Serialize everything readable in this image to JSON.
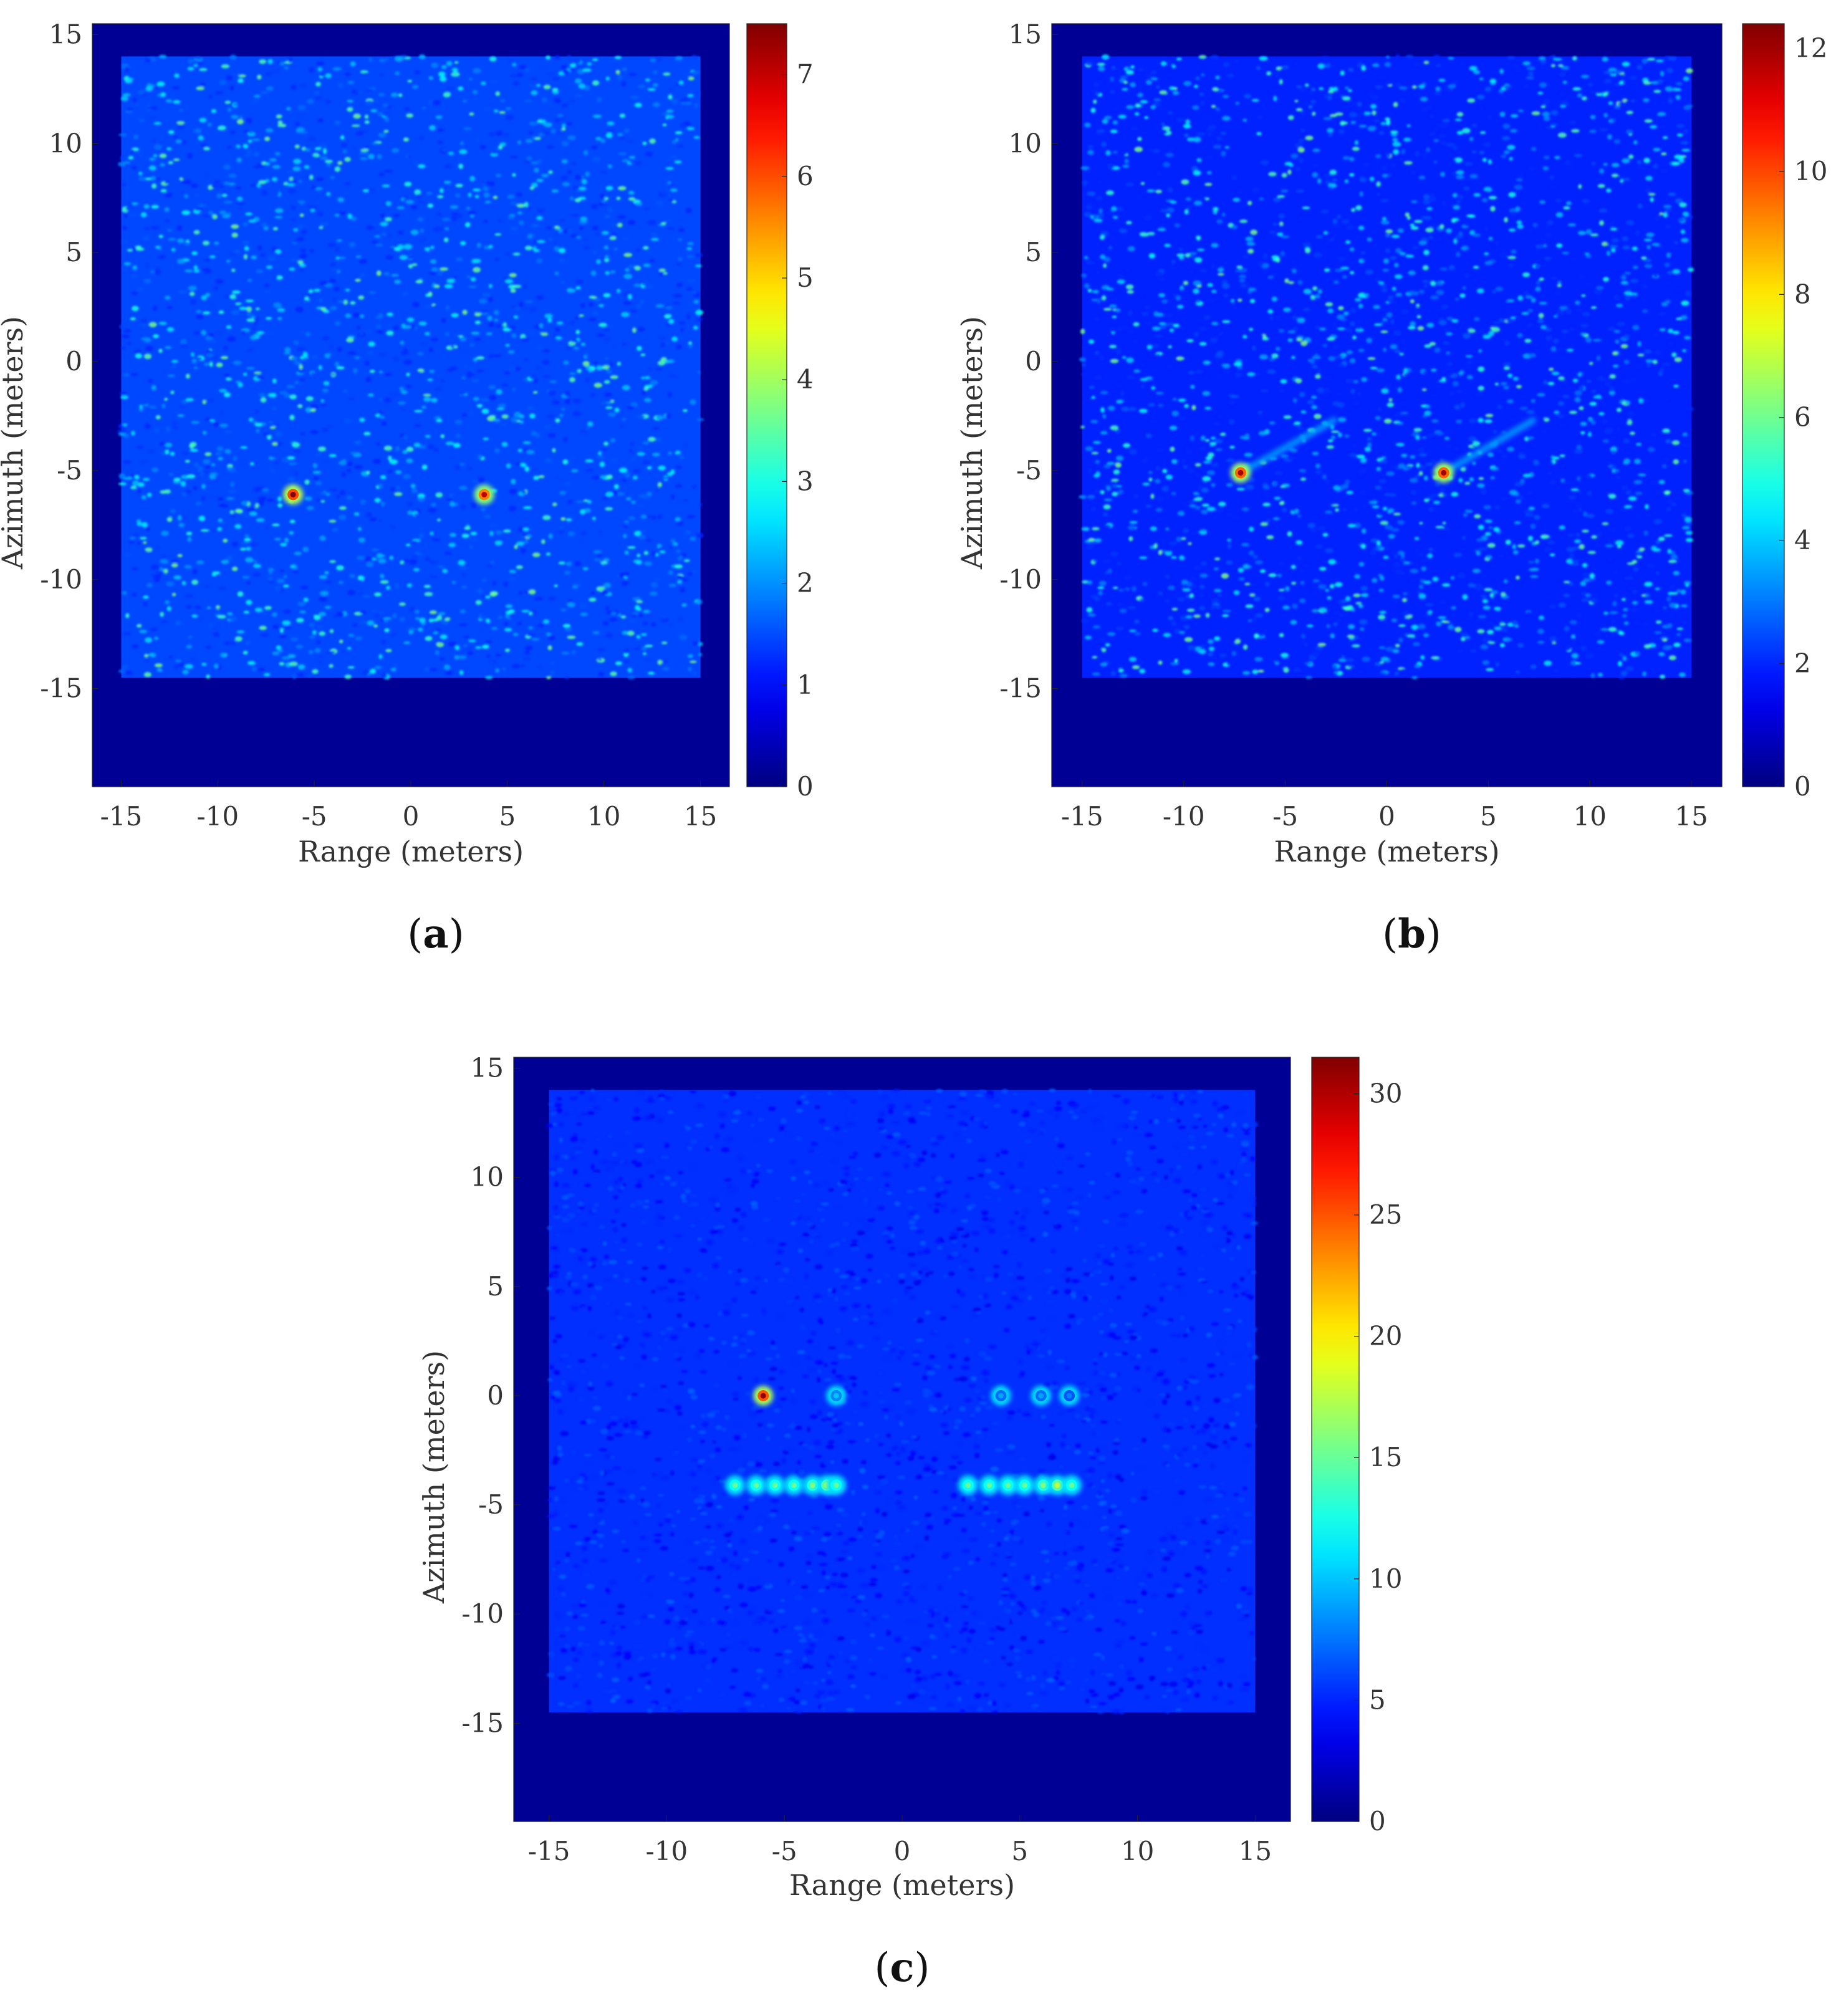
{
  "chart_data": [
    {
      "type": "heatmap",
      "panel_label": "a",
      "xlabel": "Range (meters)",
      "ylabel": "Azimuth (meters)",
      "xlim": [
        -16.5,
        16.5
      ],
      "ylim": [
        -19.5,
        15.5
      ],
      "xticks": [
        -15,
        -10,
        -5,
        0,
        5,
        10,
        15
      ],
      "yticks": [
        -15,
        -10,
        -5,
        0,
        5,
        10,
        15
      ],
      "colorbar": {
        "min": 0,
        "max": 7.5,
        "ticks": [
          0,
          1,
          2,
          3,
          4,
          5,
          6,
          7
        ]
      },
      "colormap": "jet",
      "background_level": 0.8,
      "clutter_region": {
        "x": [
          -15,
          15
        ],
        "y": [
          -14.5,
          14
        ]
      },
      "hotspots": [
        {
          "x": -6.1,
          "y": -6.1,
          "value": 7.5
        },
        {
          "x": 3.8,
          "y": -6.1,
          "value": 7.0
        }
      ],
      "streaks": []
    },
    {
      "type": "heatmap",
      "panel_label": "b",
      "xlabel": "Range (meters)",
      "ylabel": "Azimuth (meters)",
      "xlim": [
        -16.5,
        16.5
      ],
      "ylim": [
        -19.5,
        15.5
      ],
      "xticks": [
        -15,
        -10,
        -5,
        0,
        5,
        10,
        15
      ],
      "yticks": [
        -15,
        -10,
        -5,
        0,
        5,
        10,
        15
      ],
      "colorbar": {
        "min": 0,
        "max": 12.4,
        "ticks": [
          0,
          2,
          4,
          6,
          8,
          10,
          12
        ]
      },
      "colormap": "jet",
      "background_level": 0.8,
      "clutter_region": {
        "x": [
          -15,
          15
        ],
        "y": [
          -14.5,
          14
        ]
      },
      "hotspots": [
        {
          "x": -7.2,
          "y": -5.1,
          "value": 12.0
        },
        {
          "x": 2.8,
          "y": -5.1,
          "value": 12.0
        }
      ],
      "streaks": [
        {
          "x0": -7.2,
          "y0": -5.1,
          "x1": -2.6,
          "y1": -2.7,
          "value": 3.5
        },
        {
          "x0": 2.8,
          "y0": -5.1,
          "x1": 7.2,
          "y1": -2.7,
          "value": 3.5
        }
      ]
    },
    {
      "type": "heatmap",
      "panel_label": "c",
      "xlabel": "Range (meters)",
      "ylabel": "Azimuth (meters)",
      "xlim": [
        -16.5,
        16.5
      ],
      "ylim": [
        -19.5,
        15.5
      ],
      "xticks": [
        -15,
        -10,
        -5,
        0,
        5,
        10,
        15
      ],
      "yticks": [
        -15,
        -10,
        -5,
        0,
        5,
        10,
        15
      ],
      "colorbar": {
        "min": 0,
        "max": 31.5,
        "ticks": [
          0,
          5,
          10,
          15,
          20,
          25,
          30
        ]
      },
      "colormap": "jet",
      "background_level": 2.5,
      "clutter_region": {
        "x": [
          -15,
          15
        ],
        "y": [
          -14.5,
          14
        ]
      },
      "hotspots": [
        {
          "x": -5.9,
          "y": 0,
          "value": 31.0
        },
        {
          "x": -2.8,
          "y": 0,
          "value": 10.0
        },
        {
          "x": 4.2,
          "y": 0,
          "value": 9.0
        },
        {
          "x": 5.9,
          "y": 0,
          "value": 9.0
        },
        {
          "x": 7.1,
          "y": 0,
          "value": 8.0
        },
        {
          "x": -7.1,
          "y": -4.1,
          "value": 15.0
        },
        {
          "x": -6.2,
          "y": -4.1,
          "value": 15.0
        },
        {
          "x": -5.4,
          "y": -4.1,
          "value": 15.0
        },
        {
          "x": -4.6,
          "y": -4.1,
          "value": 15.0
        },
        {
          "x": -3.8,
          "y": -4.1,
          "value": 16.0
        },
        {
          "x": -3.2,
          "y": -4.1,
          "value": 18.0
        },
        {
          "x": -2.8,
          "y": -4.1,
          "value": 15.0
        },
        {
          "x": 2.8,
          "y": -4.1,
          "value": 15.0
        },
        {
          "x": 3.7,
          "y": -4.1,
          "value": 15.0
        },
        {
          "x": 4.5,
          "y": -4.1,
          "value": 15.0
        },
        {
          "x": 5.2,
          "y": -4.1,
          "value": 15.0
        },
        {
          "x": 6.0,
          "y": -4.1,
          "value": 16.0
        },
        {
          "x": 6.6,
          "y": -4.1,
          "value": 18.0
        },
        {
          "x": 7.2,
          "y": -4.1,
          "value": 15.0
        }
      ],
      "streaks": [
        {
          "x0": -7.2,
          "y0": -4.1,
          "x1": -2.7,
          "y1": -4.1,
          "value": 8.0
        },
        {
          "x0": 2.7,
          "y0": -4.1,
          "x1": 7.3,
          "y1": -4.1,
          "value": 8.0
        },
        {
          "x0": -6.4,
          "y0": 0,
          "x1": -2.6,
          "y1": 0,
          "value": 3.5
        },
        {
          "x0": 3.8,
          "y0": 0,
          "x1": 7.3,
          "y1": 0,
          "value": 3.5
        }
      ]
    }
  ]
}
